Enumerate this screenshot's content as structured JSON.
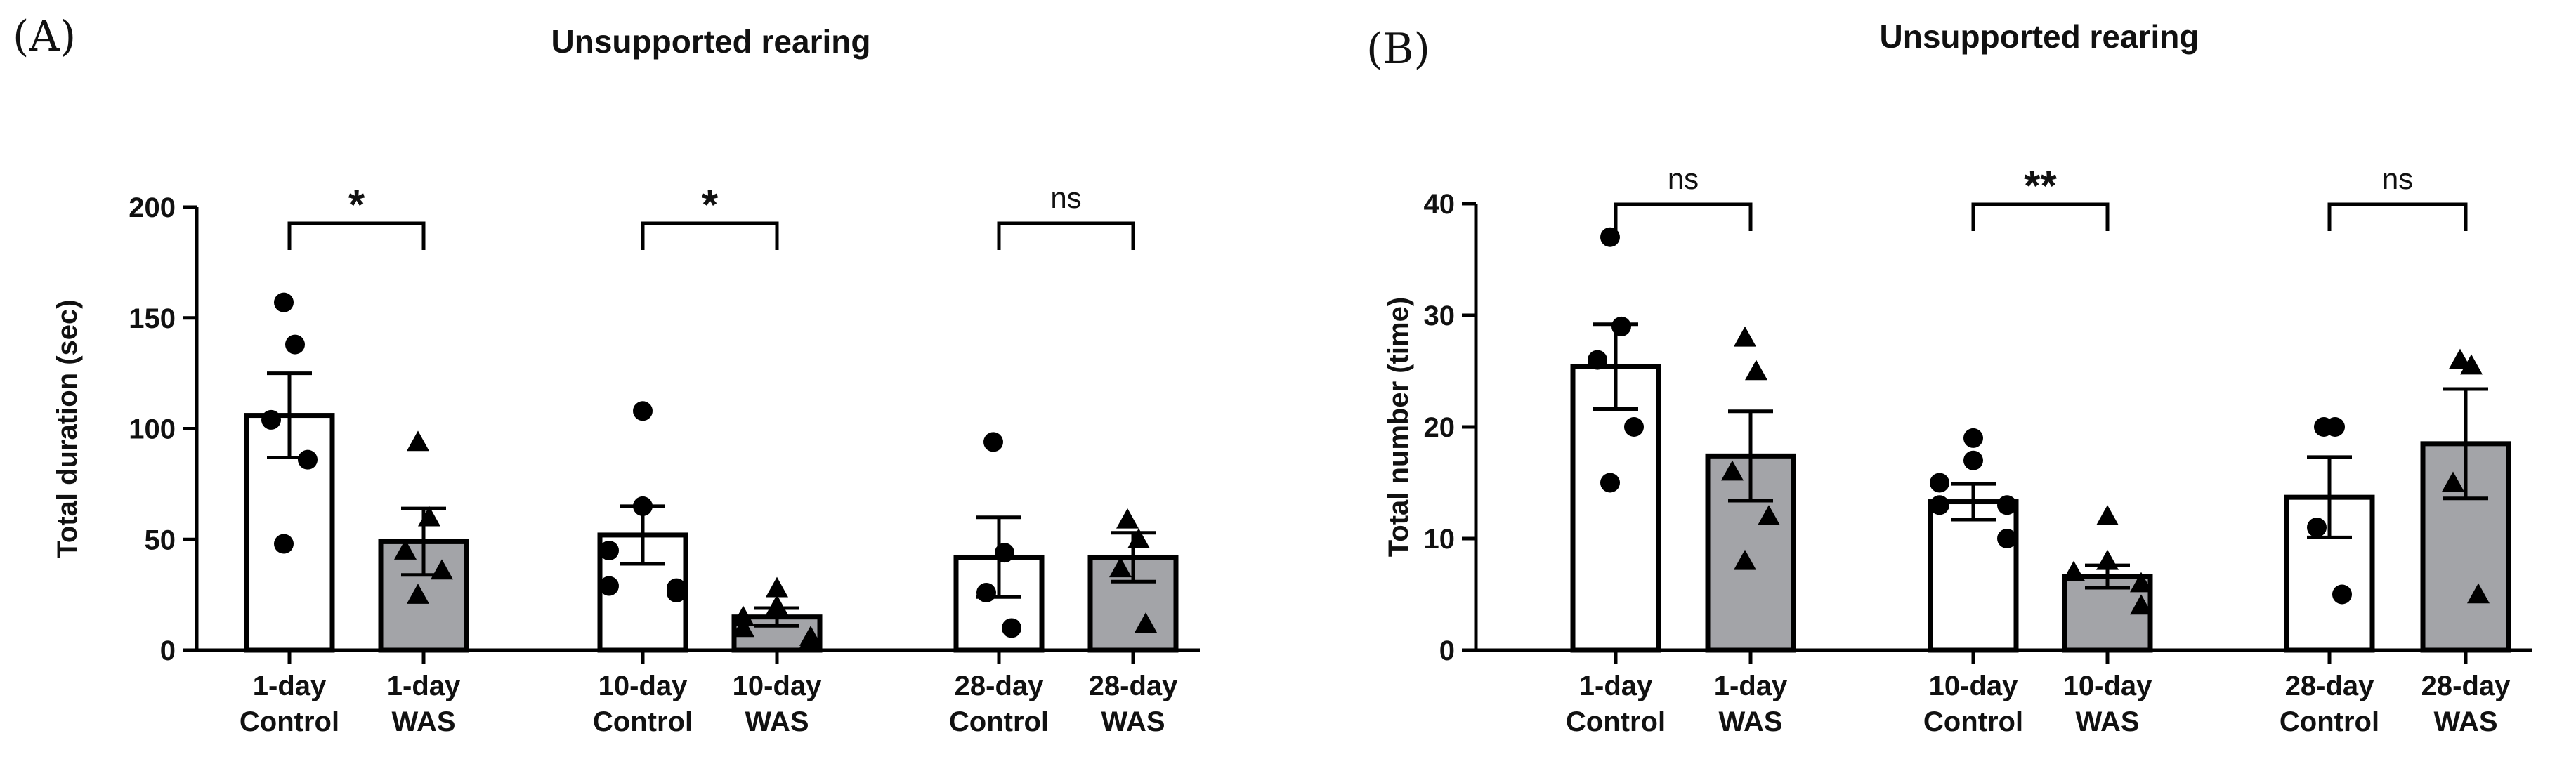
{
  "chart_data": [
    {
      "panel_label": "(A)",
      "type": "bar",
      "title": "Unsupported rearing",
      "ylabel": "Total duration (sec)",
      "xlabel": "",
      "ylim": [
        0,
        200
      ],
      "yticks": [
        "0",
        "50",
        "100",
        "150",
        "200"
      ],
      "categories": [
        {
          "line1": "1-day",
          "line2": "Control"
        },
        {
          "line1": "1-day",
          "line2": "WAS"
        },
        {
          "line1": "10-day",
          "line2": "Control"
        },
        {
          "line1": "10-day",
          "line2": "WAS"
        },
        {
          "line1": "28-day",
          "line2": "Control"
        },
        {
          "line1": "28-day",
          "line2": "WAS"
        }
      ],
      "means": [
        106,
        49,
        52,
        15,
        42,
        42
      ],
      "sem": [
        19,
        15,
        13,
        4,
        18,
        11
      ],
      "groups": [
        "control",
        "was",
        "control",
        "was",
        "control",
        "was"
      ],
      "points": [
        [
          157,
          138,
          104,
          86,
          48
        ],
        [
          94,
          60,
          45,
          36,
          25
        ],
        [
          108,
          65,
          45,
          29,
          28,
          26
        ],
        [
          28,
          20,
          15,
          10,
          6,
          5
        ],
        [
          94,
          44,
          26,
          10
        ],
        [
          59,
          50,
          37,
          12
        ]
      ],
      "comparisons": [
        {
          "label": "*",
          "from": 0,
          "to": 1
        },
        {
          "label": "*",
          "from": 2,
          "to": 3
        },
        {
          "label": "ns",
          "from": 4,
          "to": 5
        }
      ]
    },
    {
      "panel_label": "(B)",
      "type": "bar",
      "title": "Unsupported rearing",
      "ylabel": "Total number (time)",
      "xlabel": "",
      "ylim": [
        0,
        40
      ],
      "yticks": [
        "0",
        "10",
        "20",
        "30",
        "40"
      ],
      "categories": [
        {
          "line1": "1-day",
          "line2": "Control"
        },
        {
          "line1": "1-day",
          "line2": "WAS"
        },
        {
          "line1": "10-day",
          "line2": "Control"
        },
        {
          "line1": "10-day",
          "line2": "WAS"
        },
        {
          "line1": "28-day",
          "line2": "Control"
        },
        {
          "line1": "28-day",
          "line2": "WAS"
        }
      ],
      "means": [
        25.4,
        17.4,
        13.3,
        6.6,
        13.7,
        18.5
      ],
      "sem": [
        3.8,
        4.0,
        1.6,
        1.0,
        3.6,
        4.9
      ],
      "groups": [
        "control",
        "was",
        "control",
        "was",
        "control",
        "was"
      ],
      "points": [
        [
          37,
          29,
          26,
          20,
          15
        ],
        [
          28,
          25,
          16,
          12,
          8
        ],
        [
          19,
          17,
          15,
          13,
          13,
          10
        ],
        [
          12,
          8,
          7,
          7,
          6,
          4
        ],
        [
          20,
          20,
          11,
          5
        ],
        [
          26,
          25.5,
          15,
          5
        ]
      ],
      "comparisons": [
        {
          "label": "ns",
          "from": 0,
          "to": 1
        },
        {
          "label": "**",
          "from": 2,
          "to": 3
        },
        {
          "label": "ns",
          "from": 4,
          "to": 5
        }
      ]
    }
  ],
  "colors": {
    "control_fill": "#ffffff",
    "was_fill": "#a3a4a8",
    "stroke": "#000000"
  }
}
